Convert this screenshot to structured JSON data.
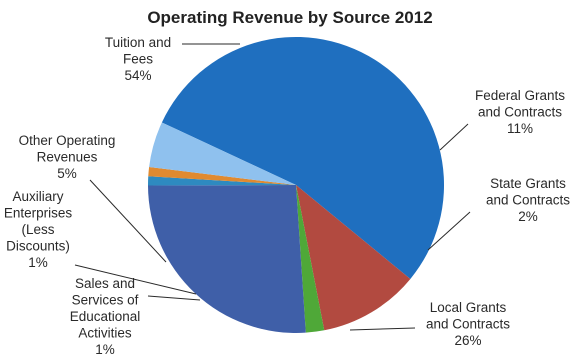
{
  "chart_data": {
    "type": "pie",
    "title": "Operating Revenue by Source 2012",
    "slices": [
      {
        "label_lines": [
          "Tuition and",
          "Fees",
          "54%"
        ],
        "value": 54,
        "color": "#1f6fbf"
      },
      {
        "label_lines": [
          "Federal Grants",
          "and Contracts",
          "11%"
        ],
        "value": 11,
        "color": "#b24a40"
      },
      {
        "label_lines": [
          "State Grants",
          "and Contracts",
          "2%"
        ],
        "value": 2,
        "color": "#4fa838"
      },
      {
        "label_lines": [
          "Local Grants",
          "and Contracts",
          "26%"
        ],
        "value": 26,
        "color": "#3f5fa8"
      },
      {
        "label_lines": [
          "Sales and",
          "Services of",
          "Educational",
          "Activities",
          "1%"
        ],
        "value": 1,
        "color": "#2e8ac0"
      },
      {
        "label_lines": [
          "Auxiliary",
          "Enterprises",
          "(Less",
          "Discounts)",
          "1%"
        ],
        "value": 1,
        "color": "#e08a30"
      },
      {
        "label_lines": [
          "Other Operating",
          "Revenues",
          "5%"
        ],
        "value": 5,
        "color": "#8fc1ee"
      }
    ]
  }
}
